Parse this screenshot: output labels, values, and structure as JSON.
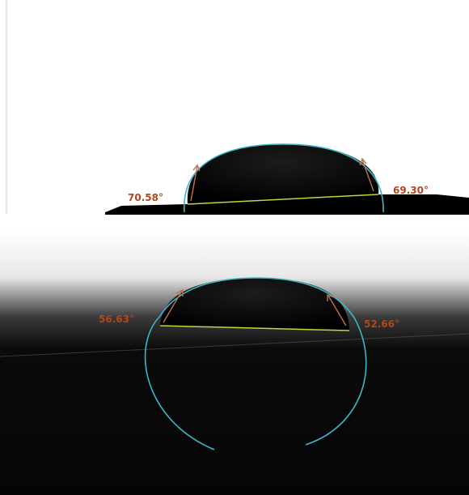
{
  "panels": [
    {
      "left_angle": "70.58°",
      "right_angle": "69.30°"
    },
    {
      "left_angle": "56.63°",
      "right_angle": "52.66°"
    }
  ]
}
